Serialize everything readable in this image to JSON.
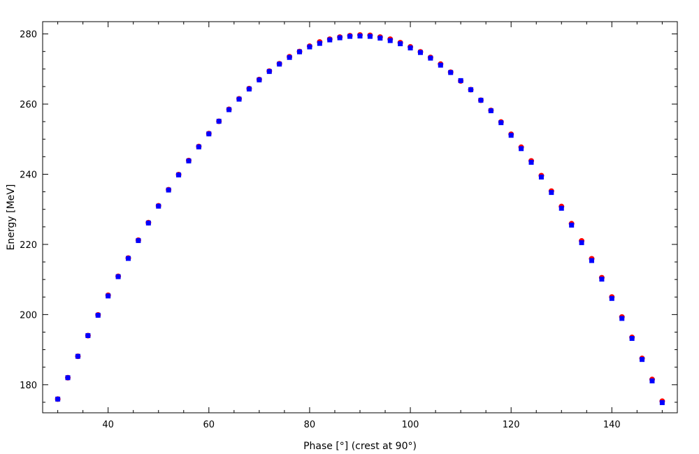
{
  "chart_data": {
    "type": "scatter",
    "title": "",
    "xlabel": "Phase [°] (crest at 90°)",
    "ylabel": "Energy [MeV]",
    "xlim": [
      27,
      153
    ],
    "ylim": [
      172,
      283.5
    ],
    "xticks": [
      40,
      60,
      80,
      100,
      120,
      140
    ],
    "xticklabels": [
      "40",
      "60",
      "80",
      "100",
      "120",
      "140"
    ],
    "yticks": [
      180,
      200,
      220,
      240,
      260,
      280
    ],
    "yticklabels": [
      "180",
      "200",
      "220",
      "240",
      "260",
      "280"
    ],
    "x_minor_step": 5,
    "y_minor_step": 5,
    "grid": false,
    "legend": "none",
    "x": [
      30,
      32,
      34,
      36,
      38,
      40,
      42,
      44,
      46,
      48,
      50,
      52,
      54,
      56,
      58,
      60,
      62,
      64,
      66,
      68,
      70,
      72,
      74,
      76,
      78,
      80,
      82,
      84,
      86,
      88,
      90,
      92,
      94,
      96,
      98,
      100,
      102,
      104,
      106,
      108,
      110,
      112,
      114,
      116,
      118,
      120,
      122,
      124,
      126,
      128,
      130,
      132,
      134,
      136,
      138,
      140,
      142,
      144,
      146,
      148,
      150
    ],
    "series": [
      {
        "color": "#ff0000",
        "marker": "circle",
        "values": [
          175.9,
          182.0,
          188.1,
          194.0,
          199.9,
          205.5,
          210.9,
          216.1,
          221.2,
          226.2,
          231.0,
          235.6,
          239.9,
          243.9,
          247.9,
          251.6,
          255.1,
          258.5,
          261.5,
          264.4,
          267.0,
          269.4,
          271.5,
          273.5,
          275.0,
          276.5,
          277.7,
          278.5,
          279.1,
          279.5,
          279.7,
          279.6,
          279.1,
          278.5,
          277.5,
          276.3,
          274.9,
          273.3,
          271.4,
          269.1,
          266.6,
          264.1,
          261.1,
          258.2,
          254.9,
          251.4,
          247.7,
          243.8,
          239.6,
          235.2,
          230.8,
          225.9,
          221.0,
          215.9,
          210.5,
          205.0,
          199.3,
          193.5,
          187.5,
          181.5,
          175.3
        ]
      },
      {
        "color": "#0000ff",
        "marker": "square",
        "values": [
          175.9,
          182.0,
          188.1,
          194.0,
          199.8,
          205.3,
          210.8,
          216.0,
          221.1,
          226.1,
          230.9,
          235.5,
          239.8,
          243.8,
          247.8,
          251.5,
          255.1,
          258.4,
          261.4,
          264.3,
          266.9,
          269.3,
          271.4,
          273.3,
          274.9,
          276.3,
          277.3,
          278.3,
          278.9,
          279.3,
          279.4,
          279.3,
          278.8,
          278.1,
          277.2,
          276.0,
          274.7,
          273.1,
          271.1,
          269.0,
          266.7,
          264.1,
          261.1,
          258.1,
          254.7,
          251.1,
          247.3,
          243.4,
          239.2,
          234.8,
          230.3,
          225.5,
          220.5,
          215.4,
          210.1,
          204.6,
          198.9,
          193.2,
          187.2,
          181.1,
          174.9
        ]
      }
    ]
  }
}
